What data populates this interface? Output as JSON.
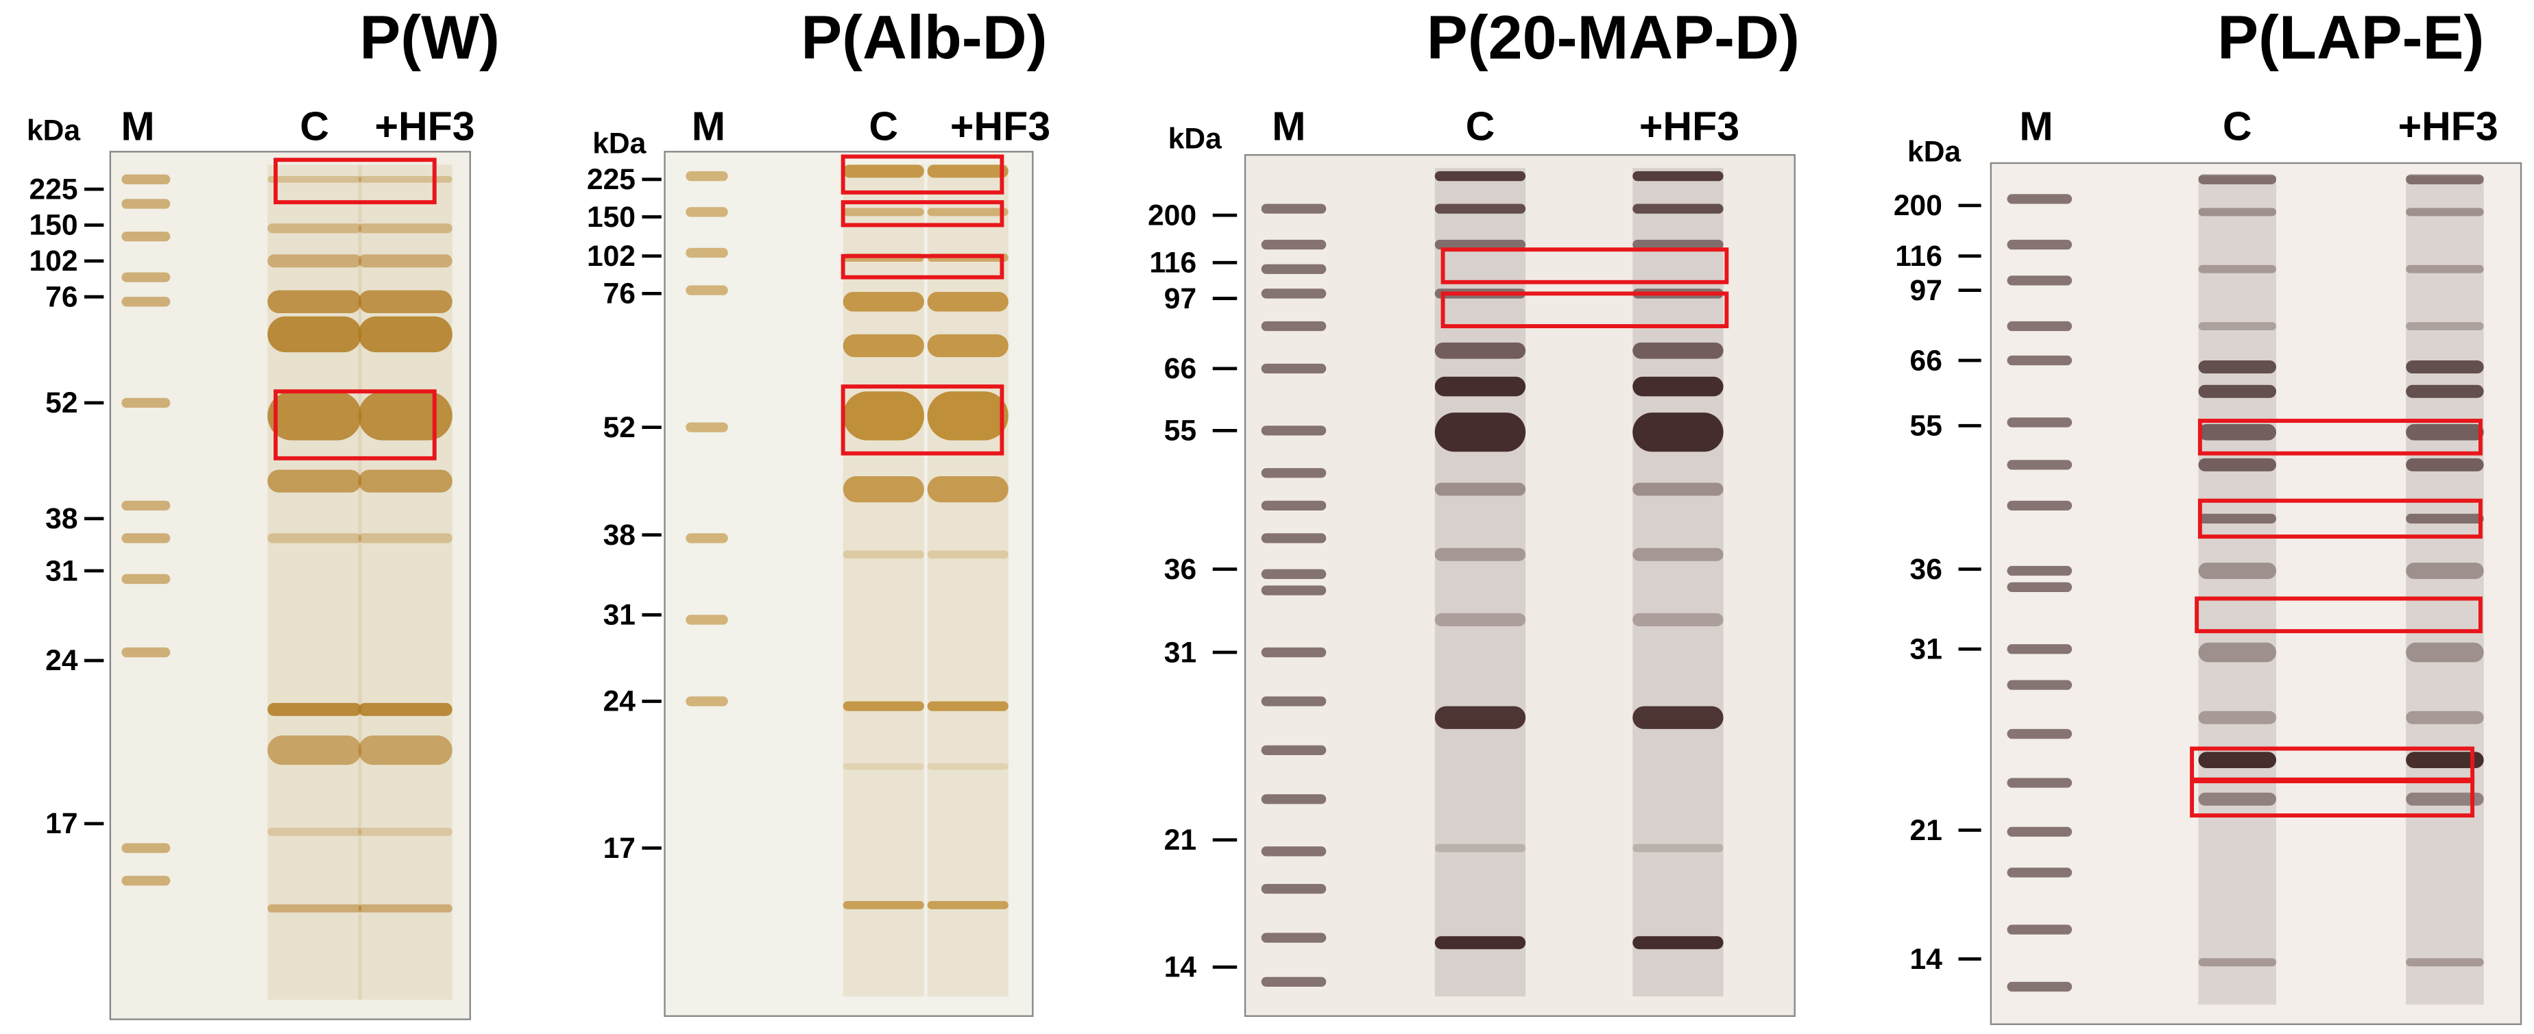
{
  "panels": [
    {
      "title": "P(W)",
      "unit": "kDa",
      "lanes": [
        "M",
        "C",
        "+HF3"
      ],
      "markers": [
        "225",
        "150",
        "102",
        "76",
        "52",
        "38",
        "31",
        "24",
        "17"
      ]
    },
    {
      "title": "P(Alb-D)",
      "unit": "kDa",
      "lanes": [
        "M",
        "C",
        "+HF3"
      ],
      "markers": [
        "225",
        "150",
        "102",
        "76",
        "52",
        "38",
        "31",
        "24",
        "17"
      ]
    },
    {
      "title": "P(20-MAP-D)",
      "unit": "kDa",
      "lanes": [
        "M",
        "C",
        "+HF3"
      ],
      "markers": [
        "200",
        "116",
        "97",
        "66",
        "55",
        "36",
        "31",
        "21",
        "14"
      ]
    },
    {
      "title": "P(LAP-E)",
      "unit": "kDa",
      "lanes": [
        "M",
        "C",
        "+HF3"
      ],
      "markers": [
        "200",
        "116",
        "97",
        "66",
        "55",
        "36",
        "31",
        "21",
        "14"
      ]
    }
  ]
}
